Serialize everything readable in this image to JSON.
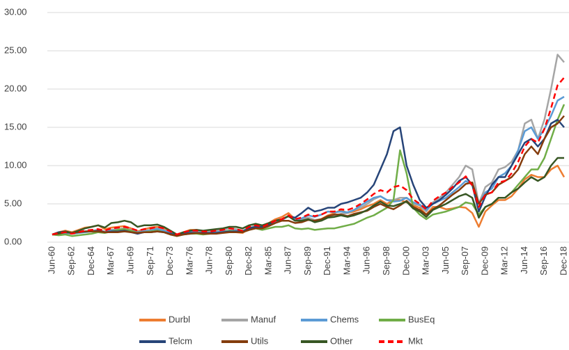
{
  "chart_data": {
    "type": "line",
    "x": [
      "Jun-60",
      null,
      null,
      "Sep-62",
      null,
      null,
      "Dec-64",
      null,
      null,
      "Mar-67",
      null,
      null,
      "Jun-69",
      null,
      null,
      "Sep-71",
      null,
      null,
      "Dec-73",
      null,
      null,
      "Mar-76",
      null,
      null,
      "Jun-78",
      null,
      null,
      "Sep-80",
      null,
      null,
      "Dec-82",
      null,
      null,
      "Mar-85",
      null,
      null,
      "Jun-87",
      null,
      null,
      "Sep-89",
      null,
      null,
      "Dec-91",
      null,
      null,
      "Mar-94",
      null,
      null,
      "Jun-96",
      null,
      null,
      "Sep-98",
      null,
      null,
      "Dec-00",
      null,
      null,
      "Mar-03",
      null,
      null,
      "Jun-05",
      null,
      null,
      "Sep-07",
      null,
      null,
      "Dec-09",
      null,
      null,
      "Mar-12",
      null,
      null,
      "Jun-14",
      null,
      null,
      "Sep-16",
      null,
      null,
      "Dec-18"
    ],
    "ylim": [
      0,
      30
    ],
    "yticks": [
      {
        "value": 0,
        "label": "0.00"
      },
      {
        "value": 5,
        "label": "5.00"
      },
      {
        "value": 10,
        "label": "10.00"
      },
      {
        "value": 15,
        "label": "15.00"
      },
      {
        "value": 20,
        "label": "20.00"
      },
      {
        "value": 25,
        "label": "25.00"
      },
      {
        "value": 30,
        "label": "30.00"
      }
    ],
    "grid": true,
    "legend": "bottom",
    "series": [
      {
        "name": "Durbl",
        "color": "#ed7d31",
        "values": [
          1.0,
          1.3,
          1.5,
          1.3,
          1.6,
          1.9,
          2.0,
          2.2,
          1.7,
          1.9,
          2.0,
          2.1,
          1.8,
          1.4,
          1.7,
          1.9,
          2.0,
          1.8,
          1.2,
          0.8,
          1.3,
          1.6,
          1.6,
          1.4,
          1.4,
          1.4,
          1.3,
          1.3,
          1.3,
          1.2,
          1.8,
          2.2,
          2.0,
          2.5,
          3.0,
          3.3,
          3.8,
          3.0,
          3.0,
          3.2,
          2.8,
          3.0,
          3.5,
          3.8,
          4.2,
          3.8,
          4.0,
          4.3,
          4.7,
          5.0,
          5.5,
          5.0,
          5.5,
          5.5,
          5.2,
          4.8,
          4.5,
          3.6,
          4.6,
          4.6,
          4.3,
          4.4,
          4.6,
          4.5,
          3.8,
          2.0,
          4.0,
          4.8,
          5.5,
          5.5,
          6.0,
          7.0,
          8.2,
          8.8,
          8.5,
          8.5,
          9.5,
          10.0,
          8.5
        ]
      },
      {
        "name": "Manuf",
        "color": "#a5a5a5",
        "values": [
          1.0,
          1.1,
          1.2,
          1.1,
          1.2,
          1.4,
          1.5,
          1.6,
          1.4,
          1.6,
          1.7,
          1.8,
          1.6,
          1.3,
          1.5,
          1.6,
          1.8,
          1.6,
          1.2,
          0.9,
          1.2,
          1.4,
          1.4,
          1.3,
          1.4,
          1.5,
          1.6,
          1.8,
          1.7,
          1.5,
          1.9,
          2.1,
          1.9,
          2.3,
          2.6,
          2.9,
          3.4,
          2.8,
          2.9,
          3.2,
          2.9,
          3.0,
          3.3,
          3.4,
          3.7,
          3.8,
          4.2,
          4.5,
          5.0,
          5.6,
          6.0,
          5.5,
          5.5,
          5.8,
          5.8,
          5.0,
          4.8,
          4.0,
          5.2,
          5.8,
          6.5,
          7.5,
          8.5,
          10.0,
          9.5,
          5.0,
          7.2,
          7.8,
          9.5,
          9.8,
          10.5,
          12.0,
          15.5,
          16.0,
          13.5,
          16.0,
          20.0,
          24.5,
          23.5
        ]
      },
      {
        "name": "Chems",
        "color": "#5b9bd5",
        "values": [
          1.0,
          1.1,
          1.2,
          1.1,
          1.2,
          1.3,
          1.4,
          1.5,
          1.3,
          1.5,
          1.6,
          1.6,
          1.5,
          1.3,
          1.4,
          1.5,
          1.7,
          1.5,
          1.2,
          0.9,
          1.2,
          1.3,
          1.3,
          1.2,
          1.2,
          1.3,
          1.4,
          1.5,
          1.5,
          1.4,
          1.8,
          2.0,
          1.9,
          2.2,
          2.6,
          2.9,
          3.4,
          2.9,
          3.1,
          3.5,
          3.3,
          3.6,
          4.0,
          3.9,
          4.0,
          3.9,
          4.2,
          4.8,
          5.3,
          5.8,
          6.0,
          5.5,
          5.3,
          5.4,
          5.8,
          5.2,
          4.9,
          4.2,
          5.0,
          5.4,
          5.8,
          6.5,
          7.2,
          8.0,
          7.5,
          5.0,
          6.5,
          7.0,
          8.5,
          9.0,
          10.0,
          12.0,
          14.5,
          15.0,
          13.5,
          14.8,
          16.5,
          18.5,
          19.0
        ]
      },
      {
        "name": "BusEq",
        "color": "#70ad47",
        "values": [
          1.0,
          0.9,
          1.0,
          0.8,
          0.9,
          1.0,
          1.1,
          1.3,
          1.2,
          1.4,
          1.6,
          1.7,
          1.5,
          1.2,
          1.3,
          1.4,
          1.5,
          1.3,
          1.0,
          0.8,
          1.0,
          1.1,
          1.1,
          1.0,
          1.1,
          1.2,
          1.3,
          1.5,
          1.4,
          1.3,
          1.6,
          1.8,
          1.6,
          1.8,
          2.0,
          2.0,
          2.2,
          1.8,
          1.7,
          1.8,
          1.6,
          1.7,
          1.8,
          1.8,
          2.0,
          2.2,
          2.4,
          2.8,
          3.2,
          3.5,
          4.0,
          4.5,
          5.5,
          12.0,
          9.0,
          4.5,
          3.6,
          3.0,
          3.6,
          3.8,
          4.0,
          4.3,
          4.6,
          5.2,
          5.0,
          3.6,
          4.6,
          5.0,
          5.8,
          5.8,
          6.5,
          7.5,
          8.5,
          9.5,
          9.5,
          11.0,
          13.5,
          16.0,
          18.0
        ]
      },
      {
        "name": "Telcm",
        "color": "#264478",
        "values": [
          1.0,
          1.3,
          1.4,
          1.2,
          1.3,
          1.4,
          1.4,
          1.5,
          1.3,
          1.4,
          1.4,
          1.5,
          1.3,
          1.1,
          1.3,
          1.3,
          1.4,
          1.3,
          1.1,
          0.9,
          1.1,
          1.2,
          1.2,
          1.2,
          1.2,
          1.2,
          1.3,
          1.4,
          1.4,
          1.4,
          1.8,
          2.0,
          2.0,
          2.3,
          2.8,
          3.0,
          3.4,
          3.2,
          3.8,
          4.5,
          4.0,
          4.2,
          4.5,
          4.5,
          5.0,
          5.2,
          5.5,
          5.8,
          6.5,
          7.5,
          9.5,
          11.5,
          14.5,
          15.0,
          10.0,
          7.5,
          5.5,
          4.5,
          5.0,
          5.5,
          6.2,
          7.0,
          8.0,
          8.5,
          7.5,
          4.0,
          6.0,
          7.5,
          8.5,
          8.5,
          10.0,
          11.5,
          13.0,
          13.5,
          12.5,
          13.5,
          15.5,
          16.0,
          15.0
        ]
      },
      {
        "name": "Utils",
        "color": "#843c0c",
        "values": [
          1.0,
          1.1,
          1.3,
          1.2,
          1.3,
          1.4,
          1.4,
          1.4,
          1.3,
          1.3,
          1.3,
          1.4,
          1.3,
          1.2,
          1.3,
          1.3,
          1.4,
          1.3,
          1.0,
          0.8,
          1.0,
          1.1,
          1.2,
          1.1,
          1.1,
          1.1,
          1.2,
          1.3,
          1.3,
          1.3,
          1.6,
          1.8,
          1.8,
          2.1,
          2.5,
          2.8,
          2.8,
          2.5,
          2.6,
          2.9,
          2.8,
          3.0,
          3.4,
          3.6,
          3.6,
          3.4,
          3.7,
          3.9,
          4.1,
          4.6,
          5.0,
          4.6,
          4.3,
          4.8,
          5.4,
          4.6,
          4.2,
          3.6,
          4.3,
          4.8,
          5.5,
          6.2,
          6.8,
          7.6,
          7.8,
          5.0,
          6.2,
          6.5,
          7.5,
          8.0,
          8.5,
          9.5,
          11.5,
          12.5,
          11.5,
          13.5,
          15.0,
          15.5,
          16.5
        ]
      },
      {
        "name": "Other",
        "color": "#375623",
        "values": [
          1.0,
          1.2,
          1.4,
          1.2,
          1.5,
          1.8,
          2.0,
          2.2,
          1.9,
          2.5,
          2.6,
          2.8,
          2.6,
          2.0,
          2.2,
          2.2,
          2.3,
          2.0,
          1.5,
          1.0,
          1.3,
          1.5,
          1.6,
          1.5,
          1.6,
          1.7,
          1.8,
          2.0,
          2.0,
          1.8,
          2.2,
          2.4,
          2.2,
          2.5,
          2.8,
          3.0,
          3.4,
          2.8,
          2.8,
          3.0,
          2.6,
          2.8,
          3.2,
          3.3,
          3.5,
          3.3,
          3.5,
          3.8,
          4.2,
          4.8,
          5.3,
          4.8,
          4.7,
          5.0,
          5.3,
          4.4,
          4.0,
          3.3,
          4.2,
          4.6,
          5.0,
          5.5,
          6.0,
          6.3,
          5.8,
          3.2,
          4.6,
          5.0,
          5.8,
          5.8,
          6.5,
          7.0,
          7.8,
          8.5,
          8.0,
          8.5,
          10.0,
          11.0,
          11.0
        ]
      },
      {
        "name": "Mkt",
        "color": "#ff0000",
        "line_style": "dashed",
        "values": [
          1.0,
          1.2,
          1.3,
          1.1,
          1.3,
          1.5,
          1.6,
          1.7,
          1.5,
          1.8,
          1.9,
          2.0,
          1.8,
          1.5,
          1.7,
          1.8,
          2.0,
          1.8,
          1.4,
          1.0,
          1.3,
          1.5,
          1.5,
          1.4,
          1.4,
          1.5,
          1.6,
          1.8,
          1.7,
          1.5,
          2.0,
          2.2,
          2.0,
          2.4,
          2.8,
          3.0,
          3.5,
          3.0,
          3.2,
          3.6,
          3.4,
          3.6,
          4.0,
          4.0,
          4.3,
          4.2,
          4.5,
          5.0,
          5.6,
          6.3,
          6.8,
          6.5,
          7.2,
          7.4,
          6.8,
          5.6,
          5.0,
          4.3,
          5.4,
          6.0,
          6.5,
          7.2,
          7.8,
          8.6,
          7.4,
          4.6,
          6.2,
          6.5,
          7.8,
          8.0,
          9.0,
          10.5,
          12.5,
          13.5,
          13.0,
          14.8,
          17.5,
          20.5,
          21.5
        ]
      }
    ]
  }
}
